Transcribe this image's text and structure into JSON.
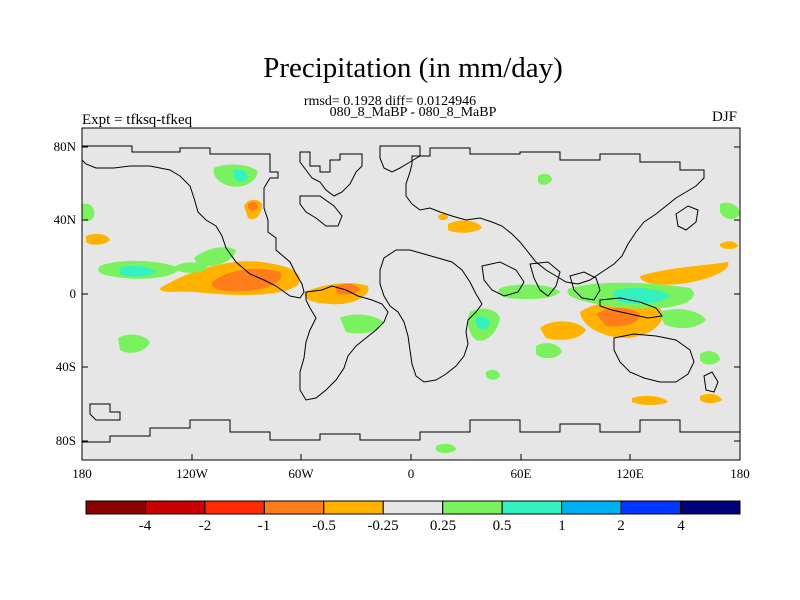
{
  "title": "Precipitation (in mm/day)",
  "stats_line": "rmsd= 0.1928 diff= 0.0124946",
  "subtitle": "080_8_MaBP - 080_8_MaBP",
  "experiment_label": "Expt = tfksq-tfkeq",
  "season": "DJF",
  "lat_ticks": [
    "80N",
    "40N",
    "0",
    "40S",
    "80S"
  ],
  "lon_ticks": [
    "180",
    "120W",
    "60W",
    "0",
    "60E",
    "120E",
    "180"
  ],
  "colorbar": {
    "colors": [
      "#8b0000",
      "#c80000",
      "#ff2a00",
      "#ff7d1a",
      "#ffb300",
      "#e6e6e6",
      "#7af25f",
      "#33f2c0",
      "#00b0f0",
      "#0036ff",
      "#000078"
    ],
    "labels": [
      "-4",
      "-2",
      "-1",
      "-0.5",
      "-0.25",
      "0.25",
      "0.5",
      "1",
      "2",
      "4"
    ]
  },
  "colors": {
    "background_field": "#e6e6e6",
    "coastline": "#000000"
  }
}
